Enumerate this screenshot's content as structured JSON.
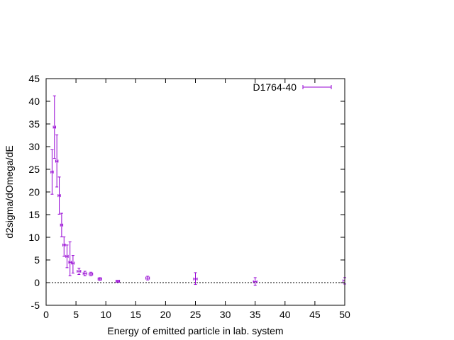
{
  "chart_data": {
    "type": "scatter",
    "title": "",
    "xlabel": "Energy of emitted particle in lab. system",
    "ylabel": "d2sigma/dOmega/dE",
    "xlim": [
      0,
      50
    ],
    "ylim": [
      -5,
      45
    ],
    "x_ticks": [
      0,
      5,
      10,
      15,
      20,
      25,
      30,
      35,
      40,
      45,
      50
    ],
    "y_ticks": [
      -5,
      0,
      5,
      10,
      15,
      20,
      25,
      30,
      35,
      40,
      45
    ],
    "grid": false,
    "zero_line": true,
    "legend_position": "top-right",
    "series": [
      {
        "name": "D1764-40",
        "color": "#9400d3",
        "marker": "errorbar",
        "points": [
          {
            "x": 1.0,
            "y": 24.4,
            "ylo": 19.5,
            "yhi": 29.3,
            "xerr": 0.2
          },
          {
            "x": 1.4,
            "y": 34.3,
            "ylo": 27.4,
            "yhi": 41.2,
            "xerr": 0.2
          },
          {
            "x": 1.8,
            "y": 26.8,
            "ylo": 21.1,
            "yhi": 32.6,
            "xerr": 0.2
          },
          {
            "x": 2.2,
            "y": 19.2,
            "ylo": 15.1,
            "yhi": 23.3,
            "xerr": 0.2
          },
          {
            "x": 2.6,
            "y": 12.7,
            "ylo": 10.1,
            "yhi": 15.3,
            "xerr": 0.2
          },
          {
            "x": 3.0,
            "y": 8.3,
            "ylo": 5.8,
            "yhi": 10.1,
            "xerr": 0.2
          },
          {
            "x": 3.5,
            "y": 5.8,
            "ylo": 3.3,
            "yhi": 8.3,
            "xerr": 0.2
          },
          {
            "x": 4.0,
            "y": 4.5,
            "ylo": 1.5,
            "yhi": 9.0,
            "xerr": 0.2
          },
          {
            "x": 4.5,
            "y": 4.3,
            "ylo": 2.1,
            "yhi": 6.0,
            "xerr": 0.2
          },
          {
            "x": 5.5,
            "y": 2.5,
            "ylo": 1.8,
            "yhi": 3.2,
            "xerr": 0.3
          },
          {
            "x": 6.5,
            "y": 2.0,
            "ylo": 1.5,
            "yhi": 2.5,
            "xerr": 0.3
          },
          {
            "x": 7.5,
            "y": 1.9,
            "ylo": 1.5,
            "yhi": 2.3,
            "xerr": 0.3
          },
          {
            "x": 9.0,
            "y": 0.8,
            "ylo": 0.5,
            "yhi": 1.1,
            "xerr": 0.3
          },
          {
            "x": 12.0,
            "y": 0.3,
            "ylo": 0.1,
            "yhi": 0.5,
            "xerr": 0.3
          },
          {
            "x": 17.0,
            "y": 1.0,
            "ylo": 0.6,
            "yhi": 1.4,
            "xerr": 0.3
          },
          {
            "x": 25.0,
            "y": 0.8,
            "ylo": -0.4,
            "yhi": 2.2,
            "xerr": 0.3
          },
          {
            "x": 35.0,
            "y": 0.2,
            "ylo": -0.6,
            "yhi": 1.1,
            "xerr": 0.3
          },
          {
            "x": 50.0,
            "y": 0.4,
            "ylo": -0.3,
            "yhi": 1.1,
            "xerr": 0.3
          }
        ]
      }
    ]
  }
}
